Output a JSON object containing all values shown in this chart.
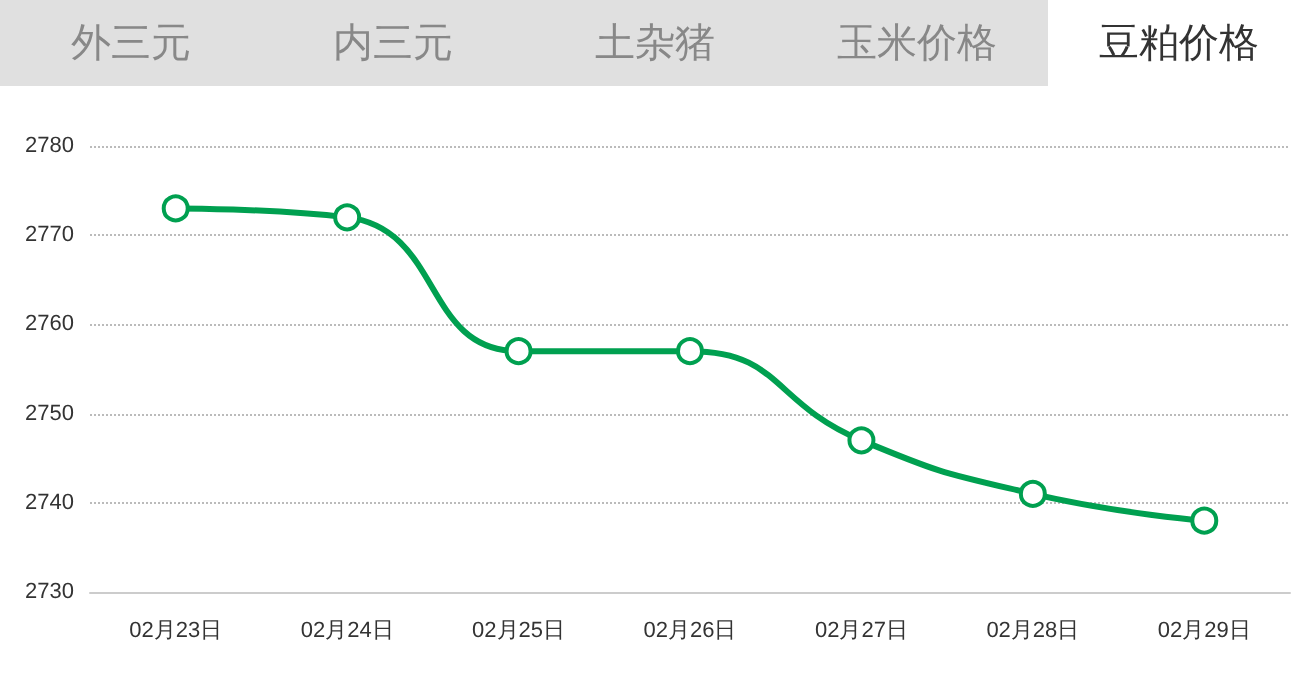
{
  "chart_data": {
    "type": "line",
    "title": "豆粕价格",
    "annotations": [
      "外三元",
      "内三元",
      "土杂猪",
      "玉米价格"
    ],
    "categories": [
      "02月23日",
      "02月24日",
      "02月25日",
      "02月26日",
      "02月27日",
      "02月28日",
      "02月29日"
    ],
    "series": [
      {
        "color": "#00a050",
        "values": [
          2773,
          2772,
          2757,
          2757,
          2747,
          2741,
          2738
        ]
      }
    ],
    "ylim": [
      2730,
      2780
    ],
    "yticks": [
      2730,
      2740,
      2750,
      2760,
      2770,
      2780
    ],
    "grid": "y",
    "marker": "circle",
    "line_style": "solid"
  }
}
